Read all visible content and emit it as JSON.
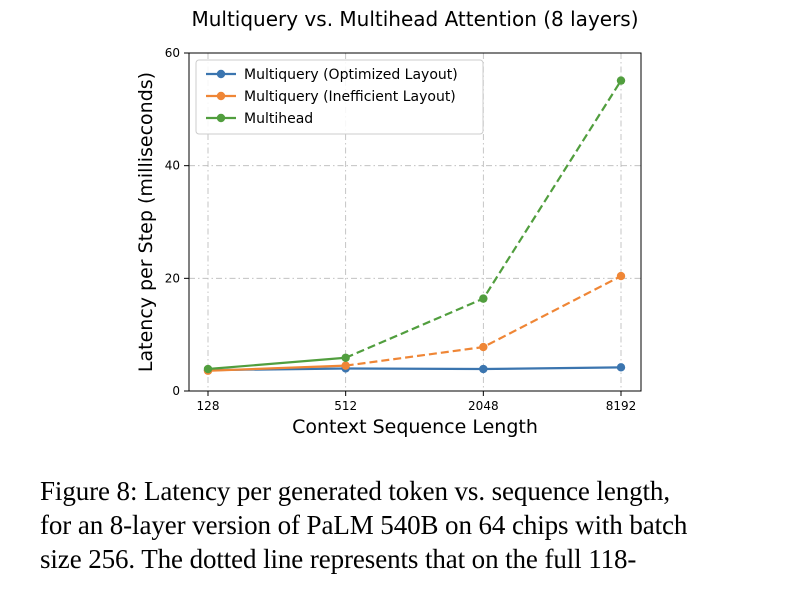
{
  "chart_data": {
    "type": "line",
    "title": "Multiquery vs. Multihead Attention (8 layers)",
    "xlabel": "Context Sequence Length",
    "ylabel": "Latency per Step (milliseconds)",
    "categories": [
      "128",
      "512",
      "2048",
      "8192"
    ],
    "x_scale": "log2",
    "ylim": [
      0,
      60
    ],
    "yticks": [
      "0",
      "20",
      "40",
      "60"
    ],
    "grid": true,
    "legend_position": "upper-left",
    "series": [
      {
        "name": "Multiquery (Optimized Layout)",
        "color": "#3b75af",
        "style": "solid",
        "values": [
          3.7,
          4.0,
          3.9,
          4.2
        ]
      },
      {
        "name": "Multiquery (Inefficient Layout)",
        "color": "#ef8636",
        "style": "dashed-after-512",
        "values": [
          3.6,
          4.5,
          7.8,
          20.4
        ]
      },
      {
        "name": "Multihead",
        "color": "#519e3e",
        "style": "dashed-after-512",
        "values": [
          3.9,
          5.9,
          16.4,
          55.1
        ]
      }
    ]
  },
  "caption": {
    "lines": [
      "Figure 8: Latency per generated token vs. sequence length,",
      "for an 8-layer version of PaLM 540B on 64 chips with batch",
      "size 256.  The dotted line represents that on the full 118-"
    ]
  }
}
